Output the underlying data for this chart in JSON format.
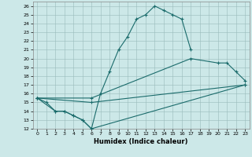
{
  "xlabel": "Humidex (Indice chaleur)",
  "xlim": [
    -0.5,
    23.5
  ],
  "ylim": [
    12,
    26.5
  ],
  "yticks": [
    12,
    13,
    14,
    15,
    16,
    17,
    18,
    19,
    20,
    21,
    22,
    23,
    24,
    25,
    26
  ],
  "xticks": [
    0,
    1,
    2,
    3,
    4,
    5,
    6,
    7,
    8,
    9,
    10,
    11,
    12,
    13,
    14,
    15,
    16,
    17,
    18,
    19,
    20,
    21,
    22,
    23
  ],
  "bg_color": "#cce8e8",
  "grid_color": "#99bbbb",
  "line_color": "#1a6b6b",
  "lines": [
    {
      "x": [
        0,
        1,
        2,
        3,
        4,
        5,
        6,
        7,
        8,
        9,
        10,
        11,
        12,
        13,
        14,
        15,
        16,
        17
      ],
      "y": [
        15.5,
        15.0,
        14.0,
        14.0,
        13.5,
        13.0,
        12.0,
        16.0,
        18.5,
        21.0,
        22.5,
        24.5,
        25.0,
        26.0,
        25.5,
        25.0,
        24.5,
        21.0
      ]
    },
    {
      "x": [
        0,
        2,
        3,
        4,
        5,
        6,
        23
      ],
      "y": [
        15.5,
        14.0,
        14.0,
        13.5,
        13.0,
        12.0,
        17.0
      ]
    },
    {
      "x": [
        0,
        6,
        17,
        20,
        21,
        22,
        23
      ],
      "y": [
        15.5,
        15.5,
        20.0,
        19.5,
        19.5,
        18.5,
        17.5
      ]
    },
    {
      "x": [
        0,
        6,
        23
      ],
      "y": [
        15.5,
        15.0,
        17.0
      ]
    }
  ]
}
